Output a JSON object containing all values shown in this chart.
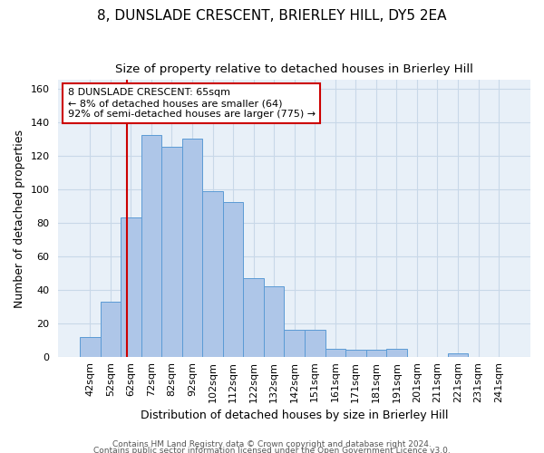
{
  "title_line1": "8, DUNSLADE CRESCENT, BRIERLEY HILL, DY5 2EA",
  "title_line2": "Size of property relative to detached houses in Brierley Hill",
  "xlabel": "Distribution of detached houses by size in Brierley Hill",
  "ylabel": "Number of detached properties",
  "footer_line1": "Contains HM Land Registry data © Crown copyright and database right 2024.",
  "footer_line2": "Contains public sector information licensed under the Open Government Licence v3.0.",
  "bar_labels": [
    "42sqm",
    "52sqm",
    "62sqm",
    "72sqm",
    "82sqm",
    "92sqm",
    "102sqm",
    "112sqm",
    "122sqm",
    "132sqm",
    "142sqm",
    "151sqm",
    "161sqm",
    "171sqm",
    "181sqm",
    "191sqm",
    "201sqm",
    "211sqm",
    "221sqm",
    "231sqm",
    "241sqm"
  ],
  "bar_values": [
    12,
    33,
    83,
    132,
    125,
    130,
    99,
    92,
    47,
    42,
    16,
    16,
    5,
    4,
    4,
    5,
    0,
    0,
    2,
    0,
    0
  ],
  "bar_color": "#aec6e8",
  "bar_edge_color": "#5b9bd5",
  "vline_position": 2.3,
  "vline_color": "#cc0000",
  "annotation_line1": "8 DUNSLADE CRESCENT: 65sqm",
  "annotation_line2": "← 8% of detached houses are smaller (64)",
  "annotation_line3": "92% of semi-detached houses are larger (775) →",
  "annotation_box_color": "#ffffff",
  "annotation_box_edge": "#cc0000",
  "ylim": [
    0,
    165
  ],
  "yticks": [
    0,
    20,
    40,
    60,
    80,
    100,
    120,
    140,
    160
  ],
  "grid_color": "#c8d8e8",
  "bg_color": "#e8f0f8",
  "title_fontsize": 11,
  "subtitle_fontsize": 9.5,
  "axis_label_fontsize": 9,
  "tick_fontsize": 8,
  "annotation_fontsize": 8,
  "footer_fontsize": 6.5
}
